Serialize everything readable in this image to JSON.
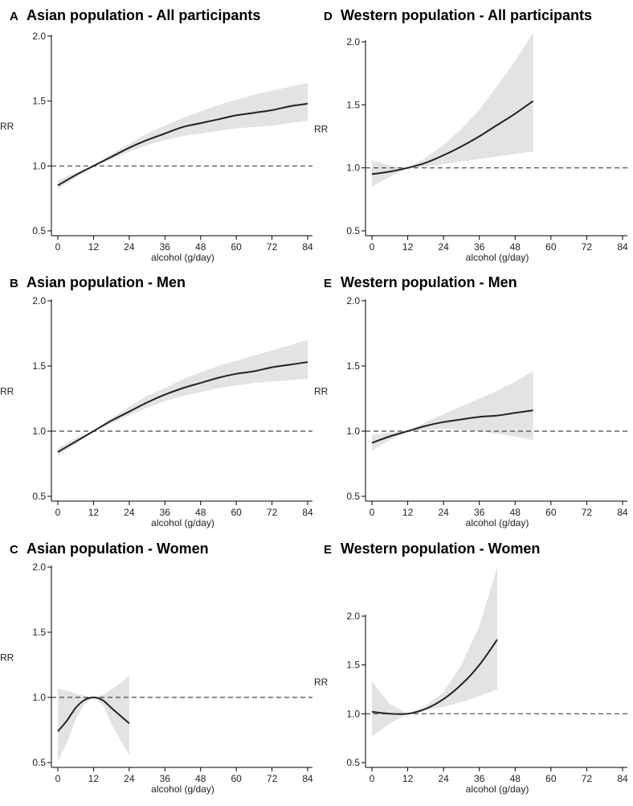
{
  "figure": {
    "colors": {
      "ci_band": "#e3e3e3",
      "curve": "#222222",
      "reference": "#444444",
      "axis": "#000000"
    },
    "reference_line": 1.0
  },
  "chart_data": [
    {
      "type": "line",
      "panel": "A",
      "title": "Asian population - All participants",
      "xlabel": "alcohol (g/day)",
      "ylabel": "RR",
      "xlim": [
        0,
        84
      ],
      "ylim": [
        0.5,
        2.0
      ],
      "xticks": [
        0,
        12,
        24,
        36,
        48,
        60,
        72,
        84
      ],
      "xtick_labels": [
        "0",
        "12",
        "24",
        "36",
        "48",
        "60",
        "72",
        "84"
      ],
      "yticks": [
        0.5,
        1.0,
        1.5,
        2.0
      ],
      "ytick_labels": [
        "0.5",
        "1.0",
        "1.5",
        "2.0"
      ],
      "series": [
        {
          "x": [
            0,
            6,
            12,
            18,
            24,
            30,
            36,
            42,
            48,
            54,
            60,
            66,
            72,
            78,
            84
          ],
          "y": [
            0.85,
            0.93,
            1.0,
            1.07,
            1.14,
            1.2,
            1.25,
            1.3,
            1.33,
            1.36,
            1.39,
            1.41,
            1.43,
            1.46,
            1.48
          ],
          "lower": [
            0.82,
            0.91,
            1.0,
            1.05,
            1.11,
            1.16,
            1.2,
            1.23,
            1.25,
            1.27,
            1.29,
            1.3,
            1.31,
            1.33,
            1.35
          ],
          "upper": [
            0.89,
            0.95,
            1.0,
            1.09,
            1.17,
            1.25,
            1.31,
            1.37,
            1.42,
            1.47,
            1.51,
            1.55,
            1.58,
            1.61,
            1.64
          ]
        }
      ],
      "grid": false
    },
    {
      "type": "line",
      "panel": "D",
      "title": "Western population - All participants",
      "xlabel": "alcohol (g/day)",
      "ylabel": "RR",
      "xlim": [
        0,
        84
      ],
      "ylim": [
        0.5,
        2.0
      ],
      "xticks": [
        0,
        12,
        24,
        36,
        48,
        60,
        72,
        84
      ],
      "xtick_labels": [
        "0",
        "12",
        "24",
        "36",
        "48",
        "60",
        "72",
        "84"
      ],
      "yticks": [
        0.5,
        1.0,
        1.5,
        2.0
      ],
      "ytick_labels": [
        "0.5",
        "1.0",
        "1.5",
        "2.0"
      ],
      "series": [
        {
          "x": [
            0,
            6,
            12,
            18,
            24,
            30,
            36,
            42,
            48,
            54
          ],
          "y": [
            0.95,
            0.97,
            1.0,
            1.04,
            1.1,
            1.17,
            1.25,
            1.34,
            1.43,
            1.53
          ],
          "lower": [
            0.85,
            0.93,
            1.0,
            1.01,
            1.03,
            1.05,
            1.07,
            1.09,
            1.11,
            1.13
          ],
          "upper": [
            1.06,
            1.02,
            1.0,
            1.08,
            1.18,
            1.31,
            1.46,
            1.65,
            1.85,
            2.07
          ]
        }
      ],
      "grid": false
    },
    {
      "type": "line",
      "panel": "B",
      "title": "Asian population - Men",
      "xlabel": "alcohol (g/day)",
      "ylabel": "RR",
      "xlim": [
        0,
        84
      ],
      "ylim": [
        0.5,
        2.0
      ],
      "xticks": [
        0,
        12,
        24,
        36,
        48,
        60,
        72,
        84
      ],
      "xtick_labels": [
        "0",
        "12",
        "24",
        "36",
        "48",
        "60",
        "72",
        "84"
      ],
      "yticks": [
        0.5,
        1.0,
        1.5,
        2.0
      ],
      "ytick_labels": [
        "0.5",
        "1.0",
        "1.5",
        "2.0"
      ],
      "series": [
        {
          "x": [
            0,
            6,
            12,
            18,
            24,
            30,
            36,
            42,
            48,
            54,
            60,
            66,
            72,
            78,
            84
          ],
          "y": [
            0.84,
            0.92,
            1.0,
            1.08,
            1.15,
            1.22,
            1.28,
            1.33,
            1.37,
            1.41,
            1.44,
            1.46,
            1.49,
            1.51,
            1.53
          ],
          "lower": [
            0.81,
            0.9,
            1.0,
            1.06,
            1.12,
            1.18,
            1.23,
            1.27,
            1.3,
            1.33,
            1.35,
            1.37,
            1.38,
            1.39,
            1.4
          ],
          "upper": [
            0.87,
            0.95,
            1.0,
            1.1,
            1.19,
            1.27,
            1.33,
            1.4,
            1.45,
            1.5,
            1.54,
            1.58,
            1.62,
            1.66,
            1.7
          ]
        }
      ],
      "grid": false
    },
    {
      "type": "line",
      "panel": "E",
      "title": "Western population - Men",
      "xlabel": "alcohol (g/day)",
      "ylabel": "RR",
      "xlim": [
        0,
        84
      ],
      "ylim": [
        0.5,
        2.0
      ],
      "xticks": [
        0,
        12,
        24,
        36,
        48,
        60,
        72,
        84
      ],
      "xtick_labels": [
        "0",
        "12",
        "24",
        "36",
        "48",
        "60",
        "72",
        "84"
      ],
      "yticks": [
        0.5,
        1.0,
        1.5,
        2.0
      ],
      "ytick_labels": [
        "0.5",
        "1.0",
        "1.5",
        "2.0"
      ],
      "series": [
        {
          "x": [
            0,
            6,
            12,
            18,
            24,
            30,
            36,
            42,
            48,
            54
          ],
          "y": [
            0.91,
            0.96,
            1.0,
            1.04,
            1.07,
            1.09,
            1.11,
            1.12,
            1.14,
            1.16
          ],
          "lower": [
            0.85,
            0.93,
            1.0,
            1.01,
            1.02,
            1.01,
            1.0,
            0.98,
            0.96,
            0.93
          ],
          "upper": [
            0.97,
            0.99,
            1.0,
            1.07,
            1.13,
            1.19,
            1.25,
            1.31,
            1.38,
            1.46
          ]
        }
      ],
      "grid": false
    },
    {
      "type": "line",
      "panel": "C",
      "title": "Asian population - Women",
      "xlabel": "alcohol (g/day)",
      "ylabel": "RR",
      "xlim": [
        0,
        84
      ],
      "ylim": [
        0.5,
        2.0
      ],
      "xticks": [
        0,
        12,
        24,
        36,
        48,
        60,
        72,
        84
      ],
      "xtick_labels": [
        "0",
        "12",
        "24",
        "36",
        "48",
        "60",
        "72",
        "84"
      ],
      "yticks": [
        0.5,
        1.0,
        1.5,
        2.0
      ],
      "ytick_labels": [
        "0.5",
        "1.0",
        "1.5",
        "2.0"
      ],
      "series": [
        {
          "x": [
            0,
            3,
            6,
            9,
            12,
            15,
            18,
            21,
            24
          ],
          "y": [
            0.74,
            0.82,
            0.92,
            0.98,
            1.0,
            0.98,
            0.92,
            0.86,
            0.8
          ],
          "lower": [
            0.51,
            0.65,
            0.83,
            0.95,
            1.0,
            0.95,
            0.8,
            0.67,
            0.56
          ],
          "upper": [
            1.07,
            1.05,
            1.03,
            1.01,
            1.0,
            1.02,
            1.06,
            1.11,
            1.17
          ]
        }
      ],
      "grid": false
    },
    {
      "type": "line",
      "panel": "E",
      "title": "Western population - Women",
      "xlabel": "alcohol (g/day)",
      "ylabel": "RR",
      "xlim": [
        0,
        84
      ],
      "ylim": [
        0.5,
        2.0
      ],
      "xticks": [
        0,
        12,
        24,
        36,
        48,
        60,
        72,
        84
      ],
      "xtick_labels": [
        "0",
        "12",
        "24",
        "36",
        "48",
        "60",
        "72",
        "84"
      ],
      "yticks": [
        0.5,
        1.0,
        1.5,
        2.0
      ],
      "ytick_labels": [
        "0.5",
        "1.0",
        "1.5",
        "2.0"
      ],
      "series": [
        {
          "x": [
            0,
            6,
            12,
            18,
            24,
            30,
            36,
            42
          ],
          "y": [
            1.02,
            1.0,
            1.0,
            1.05,
            1.15,
            1.3,
            1.5,
            1.76
          ],
          "lower": [
            0.77,
            0.9,
            1.0,
            1.04,
            1.07,
            1.12,
            1.18,
            1.25
          ],
          "upper": [
            1.33,
            1.1,
            1.0,
            1.08,
            1.22,
            1.5,
            1.9,
            2.5
          ]
        }
      ],
      "grid": false
    }
  ]
}
